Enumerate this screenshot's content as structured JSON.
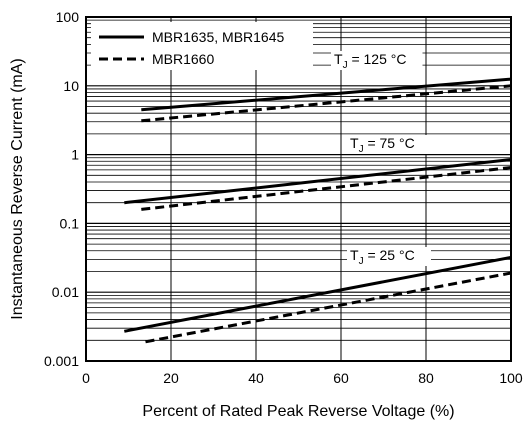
{
  "chart_data": {
    "type": "line",
    "xlabel": "Percent of Rated Peak Reverse Voltage (%)",
    "ylabel": "Instantaneous Reverse Current (mA)",
    "xlim": [
      0,
      100
    ],
    "ylim": [
      0.001,
      100
    ],
    "y_scale": "log",
    "grid": true,
    "x_ticks": [
      "0",
      "20",
      "40",
      "60",
      "80",
      "100"
    ],
    "y_ticks": [
      "0.001",
      "0.01",
      "0.1",
      "1",
      "10",
      "100"
    ],
    "legend": {
      "position": "top-left",
      "entries": [
        {
          "label": "MBR1635, MBR1645",
          "style": "solid"
        },
        {
          "label": "MBR1660",
          "style": "dashed"
        }
      ]
    },
    "annotations": [
      {
        "main": "T",
        "sub": "J",
        "rest": " = 125 °C"
      },
      {
        "main": "T",
        "sub": "J",
        "rest": " = 75 °C"
      },
      {
        "main": "T",
        "sub": "J",
        "rest": " = 25 °C"
      }
    ],
    "series": [
      {
        "name": "MBR1635, MBR1645",
        "temperature": "125 °C",
        "style": "solid",
        "x": [
          13,
          100
        ],
        "y": [
          4.5,
          12.5
        ]
      },
      {
        "name": "MBR1660",
        "temperature": "125 °C",
        "style": "dashed",
        "x": [
          13,
          100
        ],
        "y": [
          3.1,
          10
        ]
      },
      {
        "name": "MBR1635, MBR1645",
        "temperature": "75 °C",
        "style": "solid",
        "x": [
          9,
          100
        ],
        "y": [
          0.2,
          0.85
        ]
      },
      {
        "name": "MBR1660",
        "temperature": "75 °C",
        "style": "dashed",
        "x": [
          13,
          100
        ],
        "y": [
          0.16,
          0.65
        ]
      },
      {
        "name": "MBR1635, MBR1645",
        "temperature": "25 °C",
        "style": "solid",
        "x": [
          9,
          100
        ],
        "y": [
          0.0027,
          0.032
        ]
      },
      {
        "name": "MBR1660",
        "temperature": "25 °C",
        "style": "dashed",
        "x": [
          14,
          100
        ],
        "y": [
          0.0019,
          0.019
        ]
      }
    ]
  }
}
